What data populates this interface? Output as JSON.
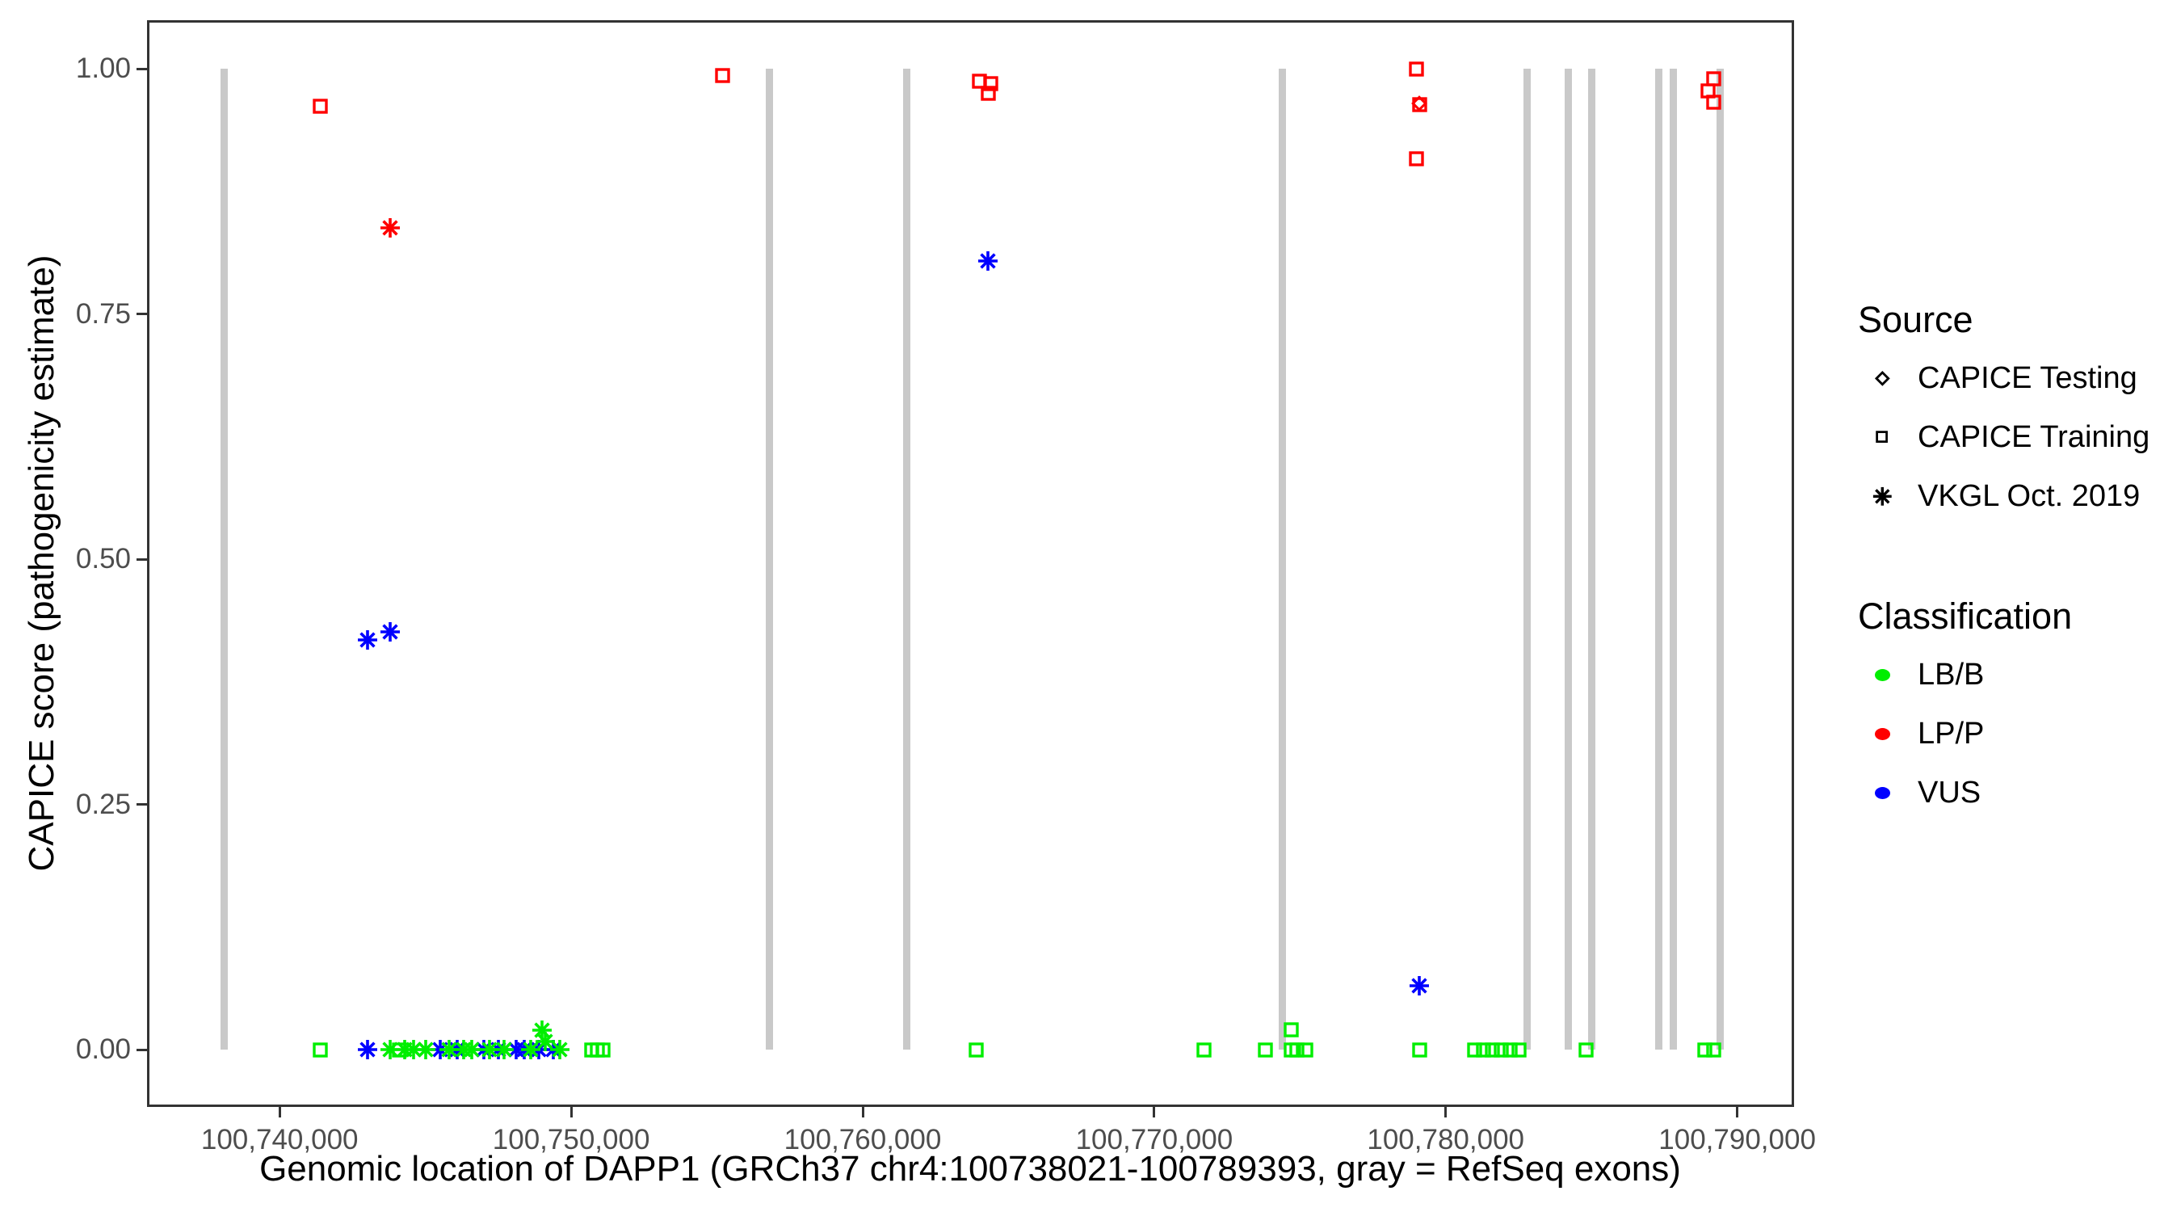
{
  "chart_data": {
    "type": "scatter",
    "title": "",
    "xlabel": "Genomic location of DAPP1 (GRCh37 chr4:100738021-100789393, gray = RefSeq exons)",
    "ylabel": "CAPICE score (pathogenicity estimate)",
    "x_range": [
      100735450,
      100791950
    ],
    "y_range": [
      0,
      1
    ],
    "grid": false,
    "legend_position": "right",
    "exon_color": "#c9c9c9",
    "tick_label_color": "#4d4d4d",
    "x_ticks": [
      {
        "value": 100740000,
        "label": "100,740,000"
      },
      {
        "value": 100750000,
        "label": "100,750,000"
      },
      {
        "value": 100760000,
        "label": "100,760,000"
      },
      {
        "value": 100770000,
        "label": "100,770,000"
      },
      {
        "value": 100780000,
        "label": "100,780,000"
      },
      {
        "value": 100790000,
        "label": "100,790,000"
      }
    ],
    "y_ticks": [
      {
        "value": 0.0,
        "label": "0.00"
      },
      {
        "value": 0.25,
        "label": "0.25"
      },
      {
        "value": 0.5,
        "label": "0.50"
      },
      {
        "value": 0.75,
        "label": "0.75"
      },
      {
        "value": 1.0,
        "label": "1.00"
      }
    ],
    "colors": {
      "LB/B": "#00ee00",
      "LP/P": "#ff0000",
      "VUS": "#0000ff"
    },
    "markers": {
      "CAPICE Testing": "diamond",
      "CAPICE Training": "square",
      "VKGL Oct. 2019": "asterisk"
    },
    "refseq_exons": {
      "half_width_bp": 125,
      "centers": [
        100738100,
        100756800,
        100761500,
        100774400,
        100782800,
        100784200,
        100785000,
        100787300,
        100787800,
        100789400
      ]
    },
    "points": [
      {
        "loc": 100741400,
        "score": 0.962,
        "source": "CAPICE Training",
        "cls": "LP/P"
      },
      {
        "loc": 100755200,
        "score": 0.993,
        "source": "CAPICE Training",
        "cls": "LP/P"
      },
      {
        "loc": 100764000,
        "score": 0.987,
        "source": "CAPICE Training",
        "cls": "LP/P"
      },
      {
        "loc": 100764400,
        "score": 0.985,
        "source": "CAPICE Training",
        "cls": "LP/P"
      },
      {
        "loc": 100764300,
        "score": 0.975,
        "source": "CAPICE Training",
        "cls": "LP/P"
      },
      {
        "loc": 100779000,
        "score": 1.0,
        "source": "CAPICE Training",
        "cls": "LP/P"
      },
      {
        "loc": 100779100,
        "score": 0.963,
        "source": "CAPICE Training",
        "cls": "LP/P"
      },
      {
        "loc": 100779100,
        "score": 0.965,
        "source": "CAPICE Testing",
        "cls": "LP/P"
      },
      {
        "loc": 100779000,
        "score": 0.908,
        "source": "CAPICE Training",
        "cls": "LP/P"
      },
      {
        "loc": 100789200,
        "score": 0.99,
        "source": "CAPICE Training",
        "cls": "LP/P"
      },
      {
        "loc": 100789000,
        "score": 0.977,
        "source": "CAPICE Training",
        "cls": "LP/P"
      },
      {
        "loc": 100789200,
        "score": 0.966,
        "source": "CAPICE Training",
        "cls": "LP/P"
      },
      {
        "loc": 100743800,
        "score": 0.838,
        "source": "VKGL Oct. 2019",
        "cls": "LP/P"
      },
      {
        "loc": 100743000,
        "score": 0.418,
        "source": "VKGL Oct. 2019",
        "cls": "VUS"
      },
      {
        "loc": 100743800,
        "score": 0.426,
        "source": "VKGL Oct. 2019",
        "cls": "VUS"
      },
      {
        "loc": 100764300,
        "score": 0.804,
        "source": "VKGL Oct. 2019",
        "cls": "VUS"
      },
      {
        "loc": 100779100,
        "score": 0.065,
        "source": "VKGL Oct. 2019",
        "cls": "VUS"
      },
      {
        "loc": 100743000,
        "score": 0.0,
        "source": "VKGL Oct. 2019",
        "cls": "VUS"
      },
      {
        "loc": 100745500,
        "score": 0.0,
        "source": "VKGL Oct. 2019",
        "cls": "VUS"
      },
      {
        "loc": 100746100,
        "score": 0.0,
        "source": "VKGL Oct. 2019",
        "cls": "VUS"
      },
      {
        "loc": 100747000,
        "score": 0.0,
        "source": "VKGL Oct. 2019",
        "cls": "VUS"
      },
      {
        "loc": 100747500,
        "score": 0.0,
        "source": "VKGL Oct. 2019",
        "cls": "VUS"
      },
      {
        "loc": 100748100,
        "score": 0.0,
        "source": "VKGL Oct. 2019",
        "cls": "VUS"
      },
      {
        "loc": 100748400,
        "score": 0.0,
        "source": "VKGL Oct. 2019",
        "cls": "VUS"
      },
      {
        "loc": 100748900,
        "score": 0.0,
        "source": "VKGL Oct. 2019",
        "cls": "VUS"
      },
      {
        "loc": 100749400,
        "score": 0.0,
        "source": "VKGL Oct. 2019",
        "cls": "VUS"
      },
      {
        "loc": 100743800,
        "score": 0.0,
        "source": "VKGL Oct. 2019",
        "cls": "LB/B"
      },
      {
        "loc": 100744300,
        "score": 0.0,
        "source": "VKGL Oct. 2019",
        "cls": "LB/B"
      },
      {
        "loc": 100744600,
        "score": 0.0,
        "source": "VKGL Oct. 2019",
        "cls": "LB/B"
      },
      {
        "loc": 100745000,
        "score": 0.0,
        "source": "VKGL Oct. 2019",
        "cls": "LB/B"
      },
      {
        "loc": 100745800,
        "score": 0.0,
        "source": "VKGL Oct. 2019",
        "cls": "LB/B"
      },
      {
        "loc": 100746300,
        "score": 0.0,
        "source": "VKGL Oct. 2019",
        "cls": "LB/B"
      },
      {
        "loc": 100746600,
        "score": 0.0,
        "source": "VKGL Oct. 2019",
        "cls": "LB/B"
      },
      {
        "loc": 100747200,
        "score": 0.0,
        "source": "VKGL Oct. 2019",
        "cls": "LB/B"
      },
      {
        "loc": 100747700,
        "score": 0.0,
        "source": "VKGL Oct. 2019",
        "cls": "LB/B"
      },
      {
        "loc": 100748600,
        "score": 0.0,
        "source": "VKGL Oct. 2019",
        "cls": "LB/B"
      },
      {
        "loc": 100749000,
        "score": 0.02,
        "source": "VKGL Oct. 2019",
        "cls": "LB/B"
      },
      {
        "loc": 100749100,
        "score": 0.008,
        "source": "VKGL Oct. 2019",
        "cls": "LB/B"
      },
      {
        "loc": 100749600,
        "score": 0.0,
        "source": "VKGL Oct. 2019",
        "cls": "LB/B"
      },
      {
        "loc": 100741400,
        "score": 0.0,
        "source": "CAPICE Training",
        "cls": "LB/B"
      },
      {
        "loc": 100744100,
        "score": 0.0,
        "source": "CAPICE Training",
        "cls": "LB/B"
      },
      {
        "loc": 100750700,
        "score": 0.0,
        "source": "CAPICE Training",
        "cls": "LB/B"
      },
      {
        "loc": 100750900,
        "score": 0.0,
        "source": "CAPICE Training",
        "cls": "LB/B"
      },
      {
        "loc": 100751100,
        "score": 0.0,
        "source": "CAPICE Training",
        "cls": "LB/B"
      },
      {
        "loc": 100763900,
        "score": 0.0,
        "source": "CAPICE Training",
        "cls": "LB/B"
      },
      {
        "loc": 100771700,
        "score": 0.0,
        "source": "CAPICE Training",
        "cls": "LB/B"
      },
      {
        "loc": 100773800,
        "score": 0.0,
        "source": "CAPICE Training",
        "cls": "LB/B"
      },
      {
        "loc": 100774700,
        "score": 0.02,
        "source": "CAPICE Training",
        "cls": "LB/B"
      },
      {
        "loc": 100774700,
        "score": 0.0,
        "source": "CAPICE Training",
        "cls": "LB/B"
      },
      {
        "loc": 100774900,
        "score": 0.0,
        "source": "CAPICE Training",
        "cls": "LB/B"
      },
      {
        "loc": 100775200,
        "score": 0.0,
        "source": "CAPICE Training",
        "cls": "LB/B"
      },
      {
        "loc": 100779100,
        "score": 0.0,
        "source": "CAPICE Training",
        "cls": "LB/B"
      },
      {
        "loc": 100781000,
        "score": 0.0,
        "source": "CAPICE Training",
        "cls": "LB/B"
      },
      {
        "loc": 100781300,
        "score": 0.0,
        "source": "CAPICE Training",
        "cls": "LB/B"
      },
      {
        "loc": 100781600,
        "score": 0.0,
        "source": "CAPICE Training",
        "cls": "LB/B"
      },
      {
        "loc": 100781900,
        "score": 0.0,
        "source": "CAPICE Training",
        "cls": "LB/B"
      },
      {
        "loc": 100782200,
        "score": 0.0,
        "source": "CAPICE Training",
        "cls": "LB/B"
      },
      {
        "loc": 100782500,
        "score": 0.0,
        "source": "CAPICE Training",
        "cls": "LB/B"
      },
      {
        "loc": 100784800,
        "score": 0.0,
        "source": "CAPICE Training",
        "cls": "LB/B"
      },
      {
        "loc": 100788900,
        "score": 0.0,
        "source": "CAPICE Training",
        "cls": "LB/B"
      },
      {
        "loc": 100789200,
        "score": 0.0,
        "source": "CAPICE Training",
        "cls": "LB/B"
      }
    ],
    "legend": {
      "source": {
        "title": "Source",
        "items": [
          {
            "label": "CAPICE Testing",
            "marker": "diamond"
          },
          {
            "label": "CAPICE Training",
            "marker": "square"
          },
          {
            "label": "VKGL Oct. 2019",
            "marker": "asterisk"
          }
        ]
      },
      "classification": {
        "title": "Classification",
        "items": [
          {
            "label": "LB/B",
            "color": "#00ee00"
          },
          {
            "label": "LP/P",
            "color": "#ff0000"
          },
          {
            "label": "VUS",
            "color": "#0000ff"
          }
        ]
      }
    }
  }
}
